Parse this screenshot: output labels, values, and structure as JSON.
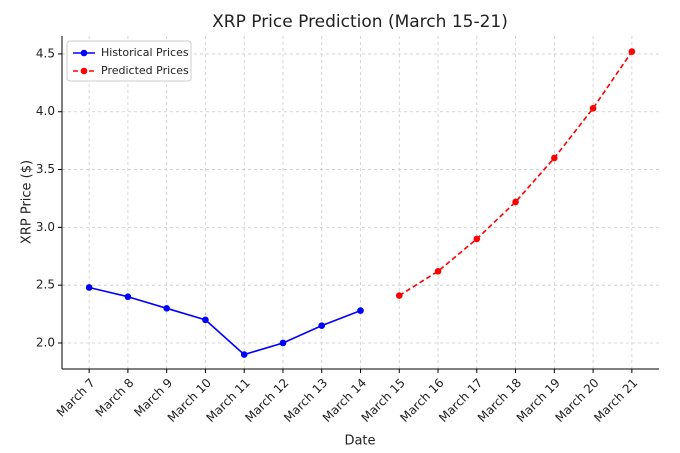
{
  "chart_data": {
    "type": "line",
    "title": "XRP Price Prediction (March 15-21)",
    "x_label": "Date",
    "y_label": "XRP Price ($)",
    "categories": [
      "March 7",
      "March 8",
      "March 9",
      "March 10",
      "March 11",
      "March 12",
      "March 13",
      "March 14",
      "March 15",
      "March 16",
      "March 17",
      "March 18",
      "March 19",
      "March 20",
      "March 21"
    ],
    "series": [
      {
        "name": "Historical Prices",
        "color": "#0000ff",
        "dashed": false,
        "values": [
          2.48,
          2.4,
          2.3,
          2.2,
          1.9,
          2.0,
          2.15,
          2.28,
          null,
          null,
          null,
          null,
          null,
          null,
          null
        ]
      },
      {
        "name": "Predicted Prices",
        "color": "#ff0000",
        "dashed": true,
        "values": [
          null,
          null,
          null,
          null,
          null,
          null,
          null,
          null,
          2.41,
          2.62,
          2.9,
          3.22,
          3.6,
          4.03,
          4.52
        ]
      }
    ],
    "ylim": [
      1.775,
      4.655
    ],
    "yticks": [
      {
        "value": 2,
        "label": "2.0"
      },
      2.5,
      {
        "value": 3,
        "label": "3.0"
      },
      3.5,
      {
        "value": 4,
        "label": "4.0"
      },
      4.5
    ],
    "grid": true,
    "legend": "upper left"
  }
}
